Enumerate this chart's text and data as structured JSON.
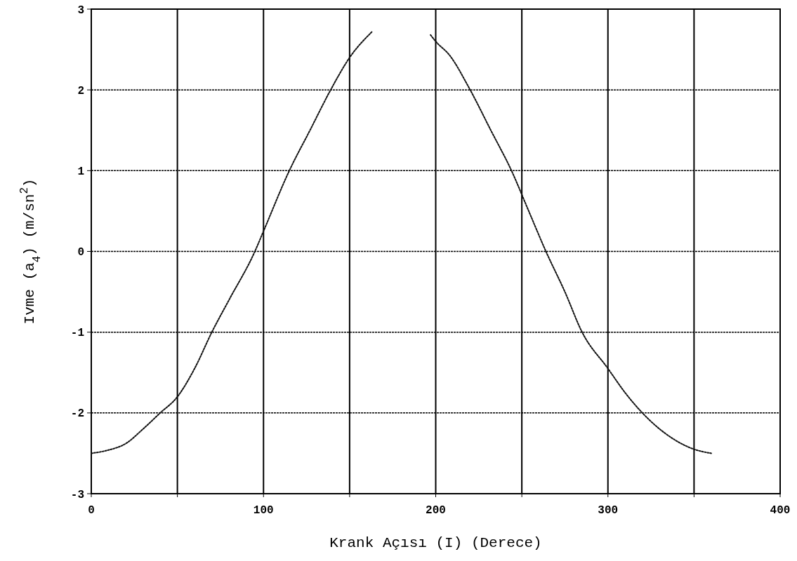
{
  "chart_data": {
    "type": "line",
    "xlabel": "Krank Açısı (I) (Derece)",
    "ylabel": "Ivme (a$_{4}$) (m/sn$^{2}$)",
    "series": [
      {
        "color": "#111111",
        "x": [
          0,
          10,
          20,
          30,
          40,
          50,
          60,
          70,
          80,
          95,
          100,
          115,
          127,
          139,
          150,
          163
        ],
        "values": [
          -2.5,
          -2.46,
          -2.38,
          -2.2,
          -2.0,
          -1.8,
          -1.45,
          -1.0,
          -0.6,
          0.0,
          0.25,
          1.0,
          1.5,
          2.0,
          2.4,
          2.72
        ]
      },
      {
        "color": "#111111",
        "x": [
          197,
          200,
          208,
          220,
          232,
          244,
          254,
          264,
          275,
          285,
          300,
          310,
          320,
          335,
          350,
          360
        ],
        "values": [
          2.68,
          2.6,
          2.43,
          2.0,
          1.5,
          1.0,
          0.5,
          0.0,
          -0.5,
          -1.0,
          -1.45,
          -1.75,
          -2.0,
          -2.28,
          -2.45,
          -2.5
        ]
      }
    ],
    "xlim": [
      0,
      400
    ],
    "ylim": [
      -3,
      3
    ],
    "xticks": [
      0,
      {
        "value": 50,
        "label": null
      },
      100,
      {
        "value": 150,
        "label": null
      },
      200,
      {
        "value": 250,
        "label": null
      },
      300,
      {
        "value": 350,
        "label": null
      },
      400
    ],
    "yticks": [
      -3,
      -2,
      -1,
      0,
      1,
      2,
      3
    ],
    "grid": true,
    "marker": "none",
    "line_style": "dotted"
  }
}
